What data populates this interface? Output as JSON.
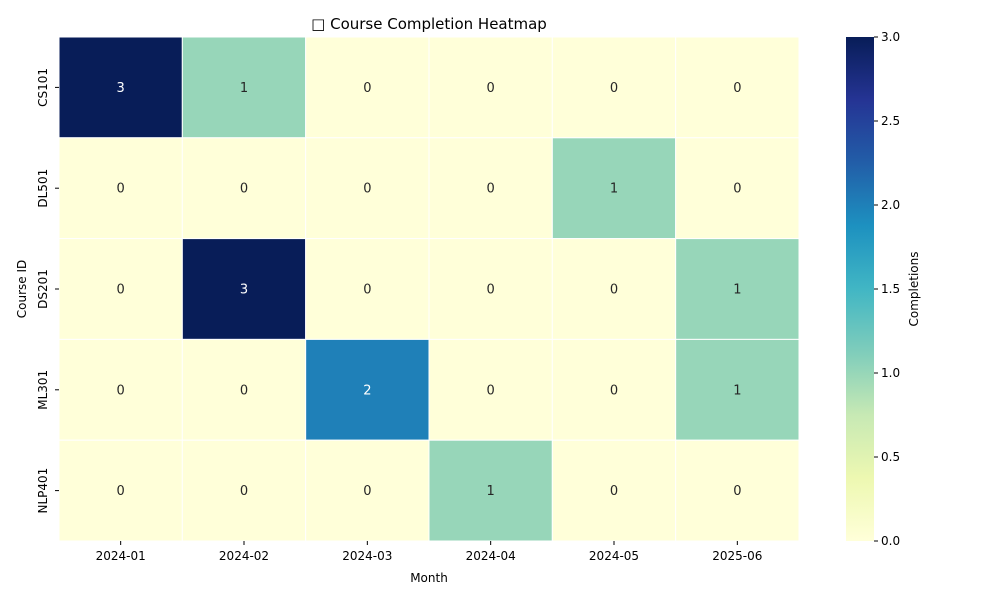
{
  "chart_data": {
    "type": "heatmap",
    "title": "□ Course Completion Heatmap",
    "xlabel": "Month",
    "ylabel": "Course ID",
    "x_categories": [
      "2024-01",
      "2024-02",
      "2024-03",
      "2024-04",
      "2024-05",
      "2025-06"
    ],
    "y_categories": [
      "CS101",
      "DL501",
      "DS201",
      "ML301",
      "NLP401"
    ],
    "values": [
      [
        3,
        1,
        0,
        0,
        0,
        0
      ],
      [
        0,
        0,
        0,
        0,
        1,
        0
      ],
      [
        0,
        3,
        0,
        0,
        0,
        1
      ],
      [
        0,
        0,
        2,
        0,
        0,
        1
      ],
      [
        0,
        0,
        0,
        1,
        0,
        0
      ]
    ],
    "annotated": true,
    "colormap": "YlGnBu",
    "color_range": [
      0,
      3
    ],
    "colorbar": {
      "label": "Completions",
      "ticks": [
        "0.0",
        "0.5",
        "1.0",
        "1.5",
        "2.0",
        "2.5",
        "3.0"
      ]
    },
    "cell_border_color": "#ffffff"
  }
}
